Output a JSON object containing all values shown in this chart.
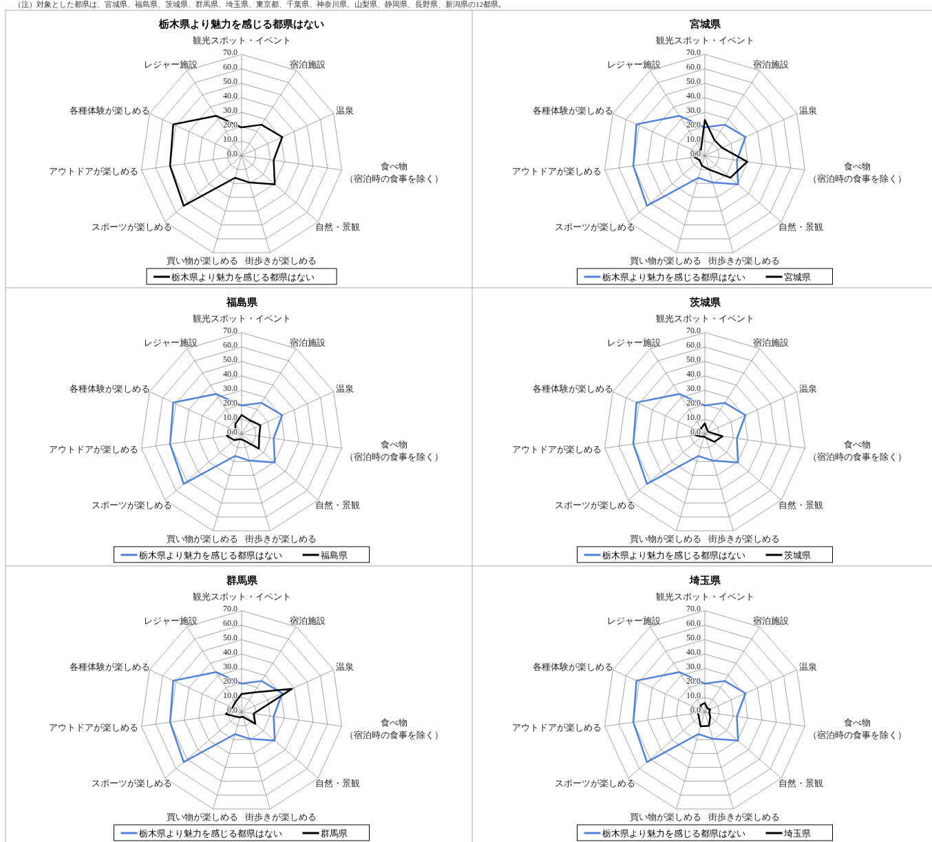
{
  "chart_data": [
    {
      "type": "radar",
      "title": "栃木県より魅力を感じる都県はない",
      "annotations": [
        "（注）対象とした都県は、宮城県、福島県、茨城県、群馬県、埼玉県、東京都、千葉県、神奈川県、山梨県、静岡県、長野県、新潟県の12都県。"
      ],
      "categories": [
        "観光スポット・イベント",
        "宿泊施設",
        "温泉",
        "食べ物（宿泊時の食事を除く）",
        "自然・景観",
        "街歩きが楽しめる",
        "買い物が楽しめる",
        "スポーツが楽しめる",
        "アウトドアが楽しめる",
        "各種体験が楽しめる",
        "レジャー施設"
      ],
      "ylim": [
        0,
        70
      ],
      "yticks": [
        {
          "value": 0,
          "label": "0.0"
        },
        {
          "value": 10,
          "label": "10.0"
        },
        {
          "value": 20,
          "label": "20.0"
        },
        {
          "value": 30,
          "label": "30.0"
        },
        {
          "value": 40,
          "label": "40.0"
        },
        {
          "value": 50,
          "label": "50.0"
        },
        {
          "value": 60,
          "label": "60.0"
        },
        {
          "value": 70,
          "label": "70.0"
        }
      ],
      "grid": true,
      "legend": "bottom",
      "series": [
        {
          "name": "栃木県より魅力を感じる都県はない",
          "color": "#000000",
          "values": [
            19.5,
            25.4,
            30.9,
            22.4,
            30.4,
            19.4,
            16,
            53,
            50,
            52,
            32.7
          ]
        }
      ]
    },
    {
      "type": "radar",
      "title": "宮城県",
      "categories": [
        "観光スポット・イベント",
        "宿泊施設",
        "温泉",
        "食べ物（宿泊時の食事を除く）",
        "自然・景観",
        "街歩きが楽しめる",
        "買い物が楽しめる",
        "スポーツが楽しめる",
        "アウトドアが楽しめる",
        "各種体験が楽しめる",
        "レジャー施設"
      ],
      "ylim": [
        0,
        70
      ],
      "yticks": [
        {
          "value": 0,
          "label": "0.0"
        },
        {
          "value": 10,
          "label": "10.0"
        },
        {
          "value": 20,
          "label": "20.0"
        },
        {
          "value": 30,
          "label": "30.0"
        },
        {
          "value": 40,
          "label": "40.0"
        },
        {
          "value": 50,
          "label": "50.0"
        },
        {
          "value": 60,
          "label": "60.0"
        },
        {
          "value": 70,
          "label": "70.0"
        }
      ],
      "grid": true,
      "legend": "bottom",
      "series": [
        {
          "name": "栃木県より魅力を感じる都県はない",
          "color": "#4f81d6",
          "values": [
            19.5,
            25.4,
            30.9,
            22.4,
            30.4,
            19.4,
            16,
            53,
            50,
            52,
            32.7
          ]
        },
        {
          "name": "宮城県",
          "color": "#000000",
          "values": [
            24.6,
            12.5,
            13.1,
            29.6,
            23.4,
            10,
            7.3,
            4.8,
            7.2,
            6,
            5
          ]
        }
      ]
    },
    {
      "type": "radar",
      "title": "福島県",
      "categories": [
        "観光スポット・イベント",
        "宿泊施設",
        "温泉",
        "食べ物（宿泊時の食事を除く）",
        "自然・景観",
        "街歩きが楽しめる",
        "買い物が楽しめる",
        "スポーツが楽しめる",
        "アウトドアが楽しめる",
        "各種体験が楽しめる",
        "レジャー施設"
      ],
      "ylim": [
        0,
        70
      ],
      "yticks": [
        {
          "value": 0,
          "label": "0.0"
        },
        {
          "value": 10,
          "label": "10.0"
        },
        {
          "value": 20,
          "label": "20.0"
        },
        {
          "value": 30,
          "label": "30.0"
        },
        {
          "value": 40,
          "label": "40.0"
        },
        {
          "value": 50,
          "label": "50.0"
        },
        {
          "value": 60,
          "label": "60.0"
        },
        {
          "value": 70,
          "label": "70.0"
        }
      ],
      "grid": true,
      "legend": "bottom",
      "series": [
        {
          "name": "栃木県より魅力を感じる都県はない",
          "color": "#4f81d6",
          "values": [
            19.5,
            25.4,
            30.9,
            22.4,
            30.4,
            19.4,
            16,
            53,
            50,
            52,
            32.7
          ]
        },
        {
          "name": "福島県",
          "color": "#000000",
          "values": [
            13,
            10.9,
            14.3,
            12.3,
            15.8,
            4.7,
            3.8,
            6.7,
            10.3,
            4.7,
            8
          ]
        }
      ]
    },
    {
      "type": "radar",
      "title": "茨城県",
      "categories": [
        "観光スポット・イベント",
        "宿泊施設",
        "温泉",
        "食べ物（宿泊時の食事を除く）",
        "自然・景観",
        "街歩きが楽しめる",
        "買い物が楽しめる",
        "スポーツが楽しめる",
        "アウトドアが楽しめる",
        "各種体験が楽しめる",
        "レジャー施設"
      ],
      "ylim": [
        0,
        70
      ],
      "yticks": [
        {
          "value": 0,
          "label": "0.0"
        },
        {
          "value": 10,
          "label": "10.0"
        },
        {
          "value": 20,
          "label": "20.0"
        },
        {
          "value": 30,
          "label": "30.0"
        },
        {
          "value": 40,
          "label": "40.0"
        },
        {
          "value": 50,
          "label": "50.0"
        },
        {
          "value": 60,
          "label": "60.0"
        },
        {
          "value": 70,
          "label": "70.0"
        }
      ],
      "grid": true,
      "legend": "bottom",
      "series": [
        {
          "name": "栃木県より魅力を感じる都県はない",
          "color": "#4f81d6",
          "values": [
            19.5,
            25.4,
            30.9,
            22.4,
            30.4,
            19.4,
            16,
            53,
            50,
            52,
            32.7
          ]
        },
        {
          "name": "茨城県",
          "color": "#000000",
          "values": [
            7.2,
            3,
            3,
            12.4,
            8.5,
            3,
            2,
            3,
            6.8,
            5.6,
            4.6
          ]
        }
      ]
    },
    {
      "type": "radar",
      "title": "群馬県",
      "categories": [
        "観光スポット・イベント",
        "宿泊施設",
        "温泉",
        "食べ物（宿泊時の食事を除く）",
        "自然・景観",
        "街歩きが楽しめる",
        "買い物が楽しめる",
        "スポーツが楽しめる",
        "アウトドアが楽しめる",
        "各種体験が楽しめる",
        "レジャー施設"
      ],
      "ylim": [
        0,
        70
      ],
      "yticks": [
        {
          "value": 0,
          "label": "0.0"
        },
        {
          "value": 10,
          "label": "10.0"
        },
        {
          "value": 20,
          "label": "20.0"
        },
        {
          "value": 30,
          "label": "30.0"
        },
        {
          "value": 40,
          "label": "40.0"
        },
        {
          "value": 50,
          "label": "50.0"
        },
        {
          "value": 60,
          "label": "60.0"
        },
        {
          "value": 70,
          "label": "70.0"
        }
      ],
      "grid": true,
      "legend": "bottom",
      "series": [
        {
          "name": "栃木県より魅力を感じる都県はない",
          "color": "#4f81d6",
          "values": [
            19.5,
            25.4,
            30.9,
            22.4,
            30.4,
            19.4,
            16,
            53,
            50,
            52,
            32.7
          ]
        },
        {
          "name": "群馬県",
          "color": "#000000",
          "values": [
            12.4,
            16,
            38.4,
            8.4,
            12.6,
            3.5,
            4,
            5,
            11,
            7,
            8
          ]
        }
      ]
    },
    {
      "type": "radar",
      "title": "埼玉県",
      "categories": [
        "観光スポット・イベント",
        "宿泊施設",
        "温泉",
        "食べ物（宿泊時の食事を除く）",
        "自然・景観",
        "街歩きが楽しめる",
        "買い物が楽しめる",
        "スポーツが楽しめる",
        "アウトドアが楽しめる",
        "各種体験が楽しめる",
        "レジャー施設"
      ],
      "ylim": [
        0,
        70
      ],
      "yticks": [
        {
          "value": 0,
          "label": "0.0"
        },
        {
          "value": 10,
          "label": "10.0"
        },
        {
          "value": 20,
          "label": "20.0"
        },
        {
          "value": 30,
          "label": "30.0"
        },
        {
          "value": 40,
          "label": "40.0"
        },
        {
          "value": 50,
          "label": "50.0"
        },
        {
          "value": 60,
          "label": "60.0"
        },
        {
          "value": 70,
          "label": "70.0"
        }
      ],
      "grid": true,
      "legend": "bottom",
      "series": [
        {
          "name": "栃木県より魅力を感じる都県はない",
          "color": "#4f81d6",
          "values": [
            19.5,
            25.4,
            30.9,
            22.4,
            30.4,
            19.4,
            16,
            53,
            50,
            52,
            32.7
          ]
        },
        {
          "name": "埼玉県",
          "color": "#000000",
          "values": [
            6.2,
            3,
            4,
            3,
            5,
            10,
            10.4,
            5.5,
            4.8,
            3.5,
            5.4
          ]
        }
      ]
    }
  ]
}
